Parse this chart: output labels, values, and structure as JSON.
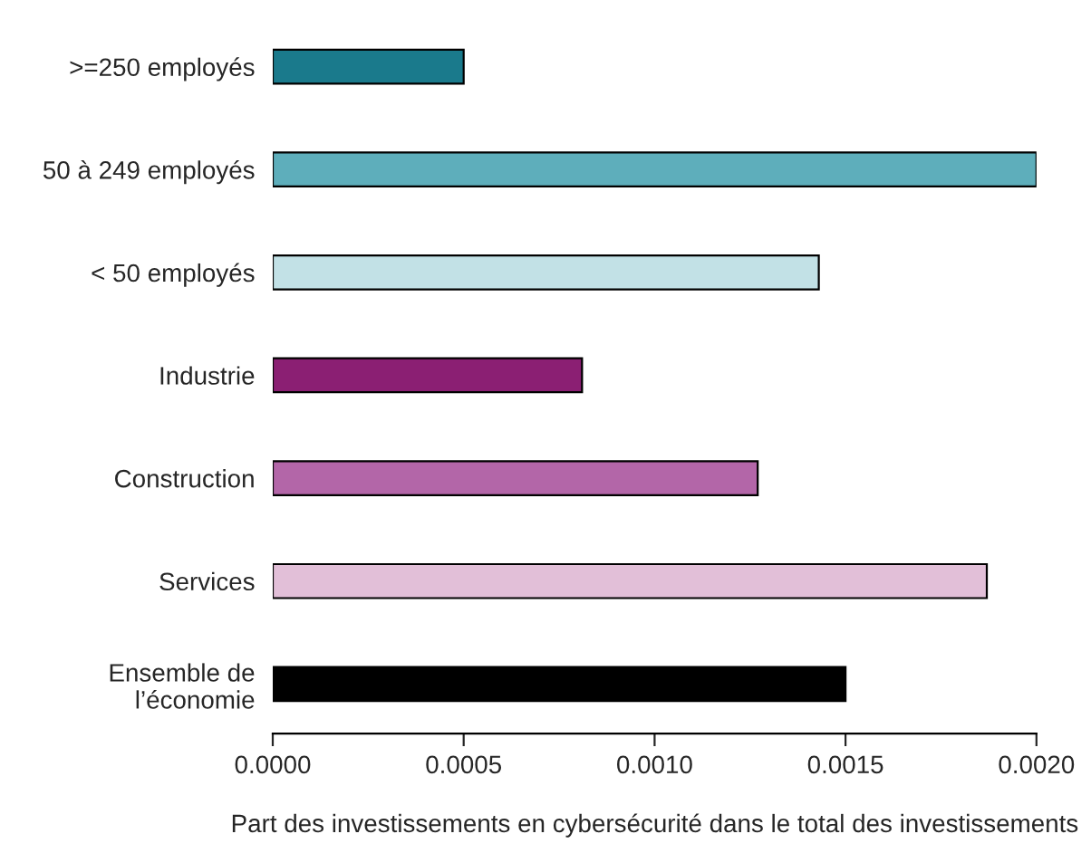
{
  "chart_data": {
    "type": "bar",
    "orientation": "horizontal",
    "xlabel": "Part des investissements en cybersécurité dans le total des investissements",
    "categories": [
      ">=250 employés",
      "50 à 249 employés",
      "< 50 employés",
      "Industrie",
      "Construction",
      "Services",
      "Ensemble de\nl’économie"
    ],
    "values": [
      0.0005,
      0.002,
      0.00143,
      0.00081,
      0.00127,
      0.00187,
      0.0015
    ],
    "colors": [
      "#1a7a8c",
      "#5eaebb",
      "#c2e1e6",
      "#8b1f73",
      "#b366a8",
      "#e2bfd8",
      "#000000"
    ],
    "xlim": [
      0,
      0.002
    ],
    "xticks": [
      {
        "value": 0,
        "label": "0.0000"
      },
      {
        "value": 0.0005,
        "label": "0.0005"
      },
      {
        "value": 0.001,
        "label": "0.0010"
      },
      {
        "value": 0.0015,
        "label": "0.0015"
      },
      {
        "value": 0.002,
        "label": "0.0020"
      }
    ],
    "grid": false,
    "legend": false
  }
}
